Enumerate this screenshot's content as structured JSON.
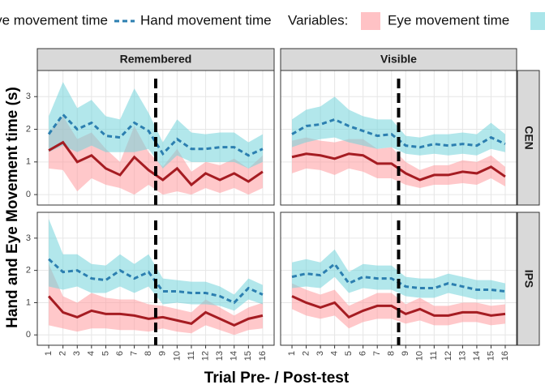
{
  "chart_data": {
    "type": "line",
    "x_label": "Trial Pre- / Post-test",
    "y_label": "Hand and Eye Movement time (s)",
    "legend_title": "Variables:",
    "columns": [
      "Remembered",
      "Visible"
    ],
    "rows": [
      "CEN",
      "IPS"
    ],
    "x": [
      1,
      2,
      3,
      4,
      5,
      6,
      7,
      8,
      9,
      10,
      11,
      12,
      13,
      14,
      15,
      16
    ],
    "xlim": [
      0.2,
      16.8
    ],
    "xticks": [
      1,
      2,
      3,
      4,
      5,
      6,
      7,
      8,
      9,
      10,
      11,
      12,
      13,
      14,
      15,
      16
    ],
    "ylim": [
      -0.32,
      3.8
    ],
    "yticks": [
      0,
      1,
      2,
      3
    ],
    "vline": 8.5,
    "grid": true,
    "series": [
      {
        "name": "Eye movement time",
        "color": "#a51c22",
        "band_color": "#ff9a9e",
        "dashed": false
      },
      {
        "name": "Hand movement time",
        "color": "#2c7fb0",
        "band_color": "#72d3da",
        "dashed": true
      }
    ],
    "panels": [
      {
        "series": [
          {
            "values": [
              1.35,
              1.6,
              1.0,
              1.2,
              0.8,
              0.6,
              1.15,
              0.75,
              0.45,
              0.8,
              0.3,
              0.65,
              0.45,
              0.65,
              0.4,
              0.7
            ],
            "low": [
              0.8,
              0.75,
              0.1,
              0.5,
              0.3,
              0.2,
              0.0,
              0.3,
              0.0,
              0.1,
              0.0,
              0.2,
              0.05,
              0.2,
              0.0,
              0.2
            ],
            "high": [
              1.9,
              2.4,
              1.7,
              1.9,
              1.4,
              1.0,
              2.1,
              1.3,
              0.85,
              1.4,
              0.7,
              1.0,
              0.9,
              1.1,
              0.8,
              1.2
            ]
          },
          {
            "values": [
              1.85,
              2.45,
              2.0,
              2.2,
              1.8,
              1.75,
              2.2,
              1.95,
              1.25,
              1.7,
              1.4,
              1.4,
              1.45,
              1.45,
              1.2,
              1.4
            ],
            "low": [
              1.3,
              1.5,
              1.3,
              1.5,
              1.3,
              1.3,
              1.3,
              1.4,
              0.8,
              1.2,
              1.0,
              1.0,
              1.0,
              1.0,
              0.8,
              1.0
            ],
            "high": [
              2.4,
              3.45,
              2.65,
              2.9,
              2.4,
              2.3,
              3.25,
              2.5,
              1.6,
              2.3,
              1.9,
              1.85,
              1.9,
              1.9,
              1.6,
              1.85
            ]
          }
        ]
      },
      {
        "series": [
          {
            "values": [
              1.15,
              1.25,
              1.2,
              1.1,
              1.25,
              1.2,
              0.95,
              0.95,
              0.65,
              0.45,
              0.6,
              0.6,
              0.7,
              0.65,
              0.85,
              0.55
            ],
            "low": [
              0.65,
              0.8,
              0.75,
              0.6,
              0.8,
              0.7,
              0.5,
              0.5,
              0.3,
              0.2,
              0.3,
              0.3,
              0.35,
              0.3,
              0.5,
              0.25
            ],
            "high": [
              1.65,
              1.75,
              1.65,
              1.6,
              1.7,
              1.7,
              1.4,
              1.45,
              1.0,
              0.75,
              0.9,
              0.9,
              1.05,
              1.0,
              1.2,
              0.85
            ]
          },
          {
            "values": [
              1.85,
              2.1,
              2.15,
              2.3,
              2.1,
              1.95,
              1.8,
              1.85,
              1.5,
              1.45,
              1.55,
              1.5,
              1.55,
              1.5,
              1.75,
              1.55
            ],
            "low": [
              1.45,
              1.6,
              1.7,
              1.75,
              1.6,
              1.5,
              1.4,
              1.45,
              1.25,
              1.2,
              1.25,
              1.2,
              1.25,
              1.2,
              1.4,
              1.3
            ],
            "high": [
              2.3,
              2.6,
              2.7,
              3.0,
              2.6,
              2.4,
              2.3,
              2.3,
              1.8,
              1.75,
              1.85,
              1.85,
              1.9,
              1.85,
              2.2,
              1.85
            ]
          }
        ]
      },
      {
        "series": [
          {
            "values": [
              1.2,
              0.7,
              0.55,
              0.75,
              0.65,
              0.65,
              0.6,
              0.5,
              0.55,
              0.45,
              0.35,
              0.7,
              0.5,
              0.3,
              0.5,
              0.6
            ],
            "low": [
              0.3,
              0.2,
              0.1,
              0.2,
              0.2,
              0.15,
              0.15,
              0.1,
              0.2,
              0.1,
              0.05,
              0.3,
              0.15,
              0.0,
              0.15,
              0.2
            ],
            "high": [
              2.2,
              1.2,
              1.0,
              1.3,
              1.15,
              1.1,
              1.1,
              0.95,
              0.9,
              0.8,
              0.7,
              1.1,
              0.85,
              0.6,
              0.85,
              1.0
            ]
          },
          {
            "values": [
              2.35,
              1.95,
              2.0,
              1.75,
              1.7,
              2.0,
              1.75,
              1.95,
              1.35,
              1.35,
              1.3,
              1.3,
              1.2,
              1.0,
              1.45,
              1.25
            ],
            "low": [
              1.5,
              1.4,
              1.5,
              1.3,
              1.3,
              1.5,
              1.3,
              1.5,
              0.95,
              1.0,
              0.95,
              0.95,
              0.9,
              0.75,
              1.1,
              0.95
            ],
            "high": [
              3.6,
              2.5,
              2.5,
              2.2,
              2.15,
              2.5,
              2.2,
              2.5,
              1.75,
              1.7,
              1.65,
              1.65,
              1.5,
              1.25,
              1.75,
              1.55
            ]
          }
        ]
      },
      {
        "series": [
          {
            "values": [
              1.2,
              1.0,
              0.85,
              1.0,
              0.55,
              0.75,
              0.9,
              0.9,
              0.65,
              0.8,
              0.6,
              0.6,
              0.7,
              0.7,
              0.6,
              0.65
            ],
            "low": [
              0.8,
              0.6,
              0.5,
              0.6,
              0.2,
              0.4,
              0.5,
              0.5,
              0.35,
              0.45,
              0.3,
              0.3,
              0.4,
              0.4,
              0.3,
              0.35
            ],
            "high": [
              1.6,
              1.4,
              1.25,
              1.4,
              0.9,
              1.1,
              1.3,
              1.3,
              0.95,
              1.15,
              0.9,
              0.9,
              1.0,
              1.0,
              0.9,
              0.95
            ]
          },
          {
            "values": [
              1.8,
              1.9,
              1.85,
              2.2,
              1.6,
              1.8,
              1.75,
              1.75,
              1.5,
              1.45,
              1.45,
              1.6,
              1.5,
              1.4,
              1.4,
              1.35
            ],
            "low": [
              1.45,
              1.5,
              1.45,
              1.8,
              1.3,
              1.45,
              1.4,
              1.4,
              1.2,
              1.15,
              1.15,
              1.3,
              1.2,
              1.1,
              1.1,
              1.1
            ],
            "high": [
              2.25,
              2.35,
              2.25,
              2.65,
              1.95,
              2.2,
              2.15,
              2.15,
              1.8,
              1.75,
              1.75,
              1.9,
              1.8,
              1.7,
              1.7,
              1.6
            ]
          }
        ]
      }
    ]
  }
}
